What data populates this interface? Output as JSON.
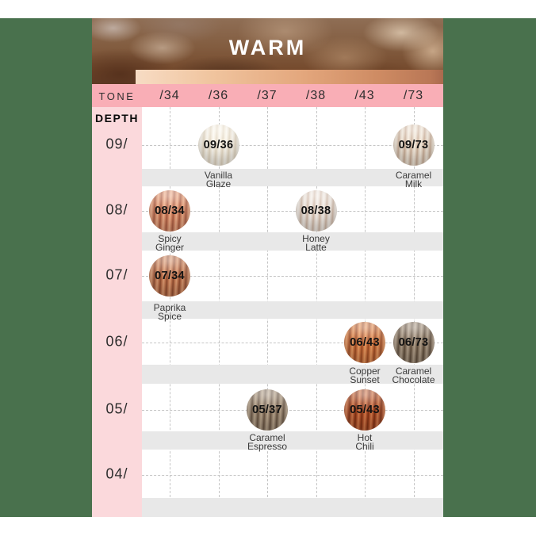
{
  "header": {
    "title": "WARM"
  },
  "tone_header": {
    "label": "TONE"
  },
  "depth_header": {
    "label": "DEPTH"
  },
  "chart_data": {
    "type": "table",
    "title": "WARM",
    "columns": [
      "/34",
      "/36",
      "/37",
      "/38",
      "/43",
      "/73"
    ],
    "row_labels": [
      "09/",
      "08/",
      "07/",
      "06/",
      "05/",
      "04/"
    ],
    "rows": [
      {
        "depth": "09/",
        "cells": [
          {
            "col": "/36",
            "code": "09/36",
            "name_lines": [
              "Vanilla",
              "Glaze"
            ],
            "colors": {
              "base": "#f4ecdd",
              "light": "#fcf9f1",
              "dark": "#e3d7c2"
            }
          },
          {
            "col": "/73",
            "code": "09/73",
            "name_lines": [
              "Caramel",
              "Milk"
            ],
            "colors": {
              "base": "#e5d4c3",
              "light": "#f4ebdd",
              "dark": "#c9ad96"
            }
          }
        ]
      },
      {
        "depth": "08/",
        "cells": [
          {
            "col": "/34",
            "code": "08/34",
            "name_lines": [
              "Spicy",
              "Ginger"
            ],
            "colors": {
              "base": "#d98a67",
              "light": "#f2b28d",
              "dark": "#aa5c41"
            }
          },
          {
            "col": "/38",
            "code": "08/38",
            "name_lines": [
              "Honey",
              "Latte"
            ],
            "colors": {
              "base": "#e8dcd2",
              "light": "#f5efe8",
              "dark": "#cfb7a5"
            }
          }
        ]
      },
      {
        "depth": "07/",
        "cells": [
          {
            "col": "/34",
            "code": "07/34",
            "name_lines": [
              "Paprika",
              "Spice"
            ],
            "colors": {
              "base": "#c1754f",
              "light": "#de9d74",
              "dark": "#8f4c2f"
            }
          }
        ]
      },
      {
        "depth": "06/",
        "cells": [
          {
            "col": "/43",
            "code": "06/43",
            "name_lines": [
              "Copper",
              "Sunset"
            ],
            "colors": {
              "base": "#cd7340",
              "light": "#ea9d63",
              "dark": "#9a4a22"
            }
          },
          {
            "col": "/73",
            "code": "06/73",
            "name_lines": [
              "Caramel",
              "Chocolate"
            ],
            "colors": {
              "base": "#8d7a66",
              "light": "#b2a08b",
              "dark": "#5d4b3a"
            }
          }
        ]
      },
      {
        "depth": "05/",
        "cells": [
          {
            "col": "/37",
            "code": "05/37",
            "name_lines": [
              "Caramel",
              "Espresso"
            ],
            "colors": {
              "base": "#97836f",
              "light": "#bba78d",
              "dark": "#685441"
            }
          },
          {
            "col": "/43",
            "code": "05/43",
            "name_lines": [
              "Hot",
              "Chili"
            ],
            "colors": {
              "base": "#b1512b",
              "light": "#d47c4b",
              "dark": "#7e3012"
            }
          }
        ]
      },
      {
        "depth": "04/",
        "cells": []
      }
    ]
  },
  "palette": {
    "backdrop_green": "#49714d",
    "tone_row_pink": "#f9aeb6",
    "depth_column_pink": "#fbd9dc",
    "name_band_gray": "#e8e8e8",
    "grid_line_gray": "#c6c6c6",
    "gradient_bar": [
      "#f7dcc4",
      "#e3a67c",
      "#aa6a4e"
    ]
  }
}
